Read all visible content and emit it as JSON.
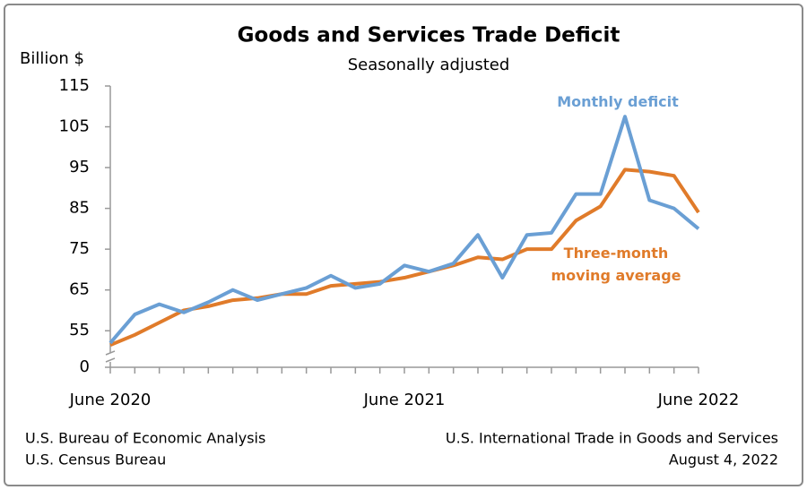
{
  "chart_data": {
    "type": "line",
    "title": "Goods and Services Trade Deficit",
    "subtitle": "Seasonally adjusted",
    "y_label": "Billion $",
    "categories": [
      "June 2020",
      null,
      null,
      null,
      null,
      null,
      null,
      null,
      null,
      null,
      null,
      null,
      "June 2021",
      null,
      null,
      null,
      null,
      null,
      null,
      null,
      null,
      null,
      null,
      null,
      "June 2022"
    ],
    "series": [
      {
        "name": "Monthly deficit",
        "color": "#6a9fd4",
        "values": [
          52,
          59,
          61.5,
          59.5,
          62,
          65,
          62.5,
          64,
          65.5,
          68.5,
          65.5,
          66.5,
          71,
          69.5,
          71.5,
          78.5,
          68,
          78.5,
          79,
          88.5,
          88.5,
          107.5,
          87,
          85,
          80
        ]
      },
      {
        "name": "Three-month moving average",
        "color": "#e07b2a",
        "values": [
          51.5,
          54,
          57,
          60,
          61,
          62.5,
          63,
          64,
          64,
          66,
          66.5,
          67,
          68,
          69.5,
          71,
          73,
          72.5,
          75,
          75,
          82,
          85.5,
          94.5,
          94,
          93,
          84
        ]
      }
    ],
    "ylim": [
      50,
      115
    ],
    "axis_break": [
      0,
      50
    ],
    "yticks": [
      0,
      55,
      65,
      75,
      85,
      95,
      105,
      115
    ],
    "grid": false,
    "sources": [
      "U.S. Bureau of Economic Analysis",
      "U.S. Census Bureau"
    ],
    "release": [
      "U.S. International Trade in Goods and Services",
      "August 4, 2022"
    ]
  }
}
